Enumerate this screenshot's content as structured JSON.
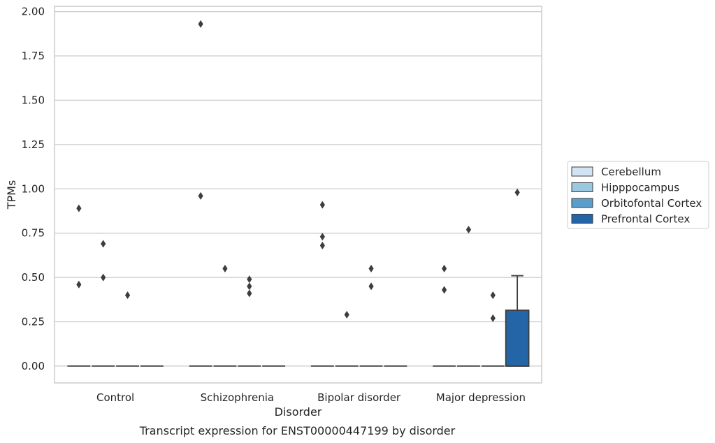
{
  "chart_data": {
    "type": "box",
    "title": "Transcript expression for ENST00000447199 by disorder",
    "xlabel": "Disorder",
    "ylabel": "TPMs",
    "categories": [
      "Control",
      "Schizophrenia",
      "Bipolar disorder",
      "Major depression"
    ],
    "ylim": [
      -0.095,
      2.03
    ],
    "yticks": [
      0.0,
      0.25,
      0.5,
      0.75,
      1.0,
      1.25,
      1.5,
      1.75,
      2.0
    ],
    "ytick_labels": [
      "0.00",
      "0.25",
      "0.50",
      "0.75",
      "1.00",
      "1.25",
      "1.50",
      "1.75",
      "2.00"
    ],
    "grid": true,
    "legend_position": "right",
    "series": [
      {
        "name": "Cerebellum",
        "color": "#d2e3f3",
        "boxes": [
          {
            "q1": 0,
            "median": 0,
            "q3": 0,
            "whisker_low": 0,
            "whisker_high": 0,
            "outliers": [
              0.89,
              0.46
            ]
          },
          {
            "q1": 0,
            "median": 0,
            "q3": 0,
            "whisker_low": 0,
            "whisker_high": 0,
            "outliers": [
              1.93,
              0.96
            ]
          },
          {
            "q1": 0,
            "median": 0,
            "q3": 0,
            "whisker_low": 0,
            "whisker_high": 0,
            "outliers": [
              0.91,
              0.73,
              0.68
            ]
          },
          {
            "q1": 0,
            "median": 0,
            "q3": 0,
            "whisker_low": 0,
            "whisker_high": 0,
            "outliers": [
              0.55,
              0.43
            ]
          }
        ]
      },
      {
        "name": "Hipppocampus",
        "color": "#9ac8e0",
        "boxes": [
          {
            "q1": 0,
            "median": 0,
            "q3": 0,
            "whisker_low": 0,
            "whisker_high": 0,
            "outliers": [
              0.69,
              0.5
            ]
          },
          {
            "q1": 0,
            "median": 0,
            "q3": 0,
            "whisker_low": 0,
            "whisker_high": 0,
            "outliers": [
              0.55
            ]
          },
          {
            "q1": 0,
            "median": 0,
            "q3": 0,
            "whisker_low": 0,
            "whisker_high": 0,
            "outliers": [
              0.29
            ]
          },
          {
            "q1": 0,
            "median": 0,
            "q3": 0,
            "whisker_low": 0,
            "whisker_high": 0,
            "outliers": [
              0.77
            ]
          }
        ]
      },
      {
        "name": "Orbitofontal Cortex",
        "color": "#5a9ec9",
        "boxes": [
          {
            "q1": 0,
            "median": 0,
            "q3": 0,
            "whisker_low": 0,
            "whisker_high": 0,
            "outliers": [
              0.4
            ]
          },
          {
            "q1": 0,
            "median": 0,
            "q3": 0,
            "whisker_low": 0,
            "whisker_high": 0,
            "outliers": [
              0.49,
              0.45,
              0.41
            ]
          },
          {
            "q1": 0,
            "median": 0,
            "q3": 0,
            "whisker_low": 0,
            "whisker_high": 0,
            "outliers": [
              0.55,
              0.45
            ]
          },
          {
            "q1": 0,
            "median": 0,
            "q3": 0,
            "whisker_low": 0,
            "whisker_high": 0,
            "outliers": [
              0.4,
              0.27
            ]
          }
        ]
      },
      {
        "name": "Prefrontal Cortex",
        "color": "#2465a8",
        "boxes": [
          {
            "q1": 0,
            "median": 0,
            "q3": 0,
            "whisker_low": 0,
            "whisker_high": 0,
            "outliers": []
          },
          {
            "q1": 0,
            "median": 0,
            "q3": 0,
            "whisker_low": 0,
            "whisker_high": 0,
            "outliers": []
          },
          {
            "q1": 0,
            "median": 0,
            "q3": 0,
            "whisker_low": 0,
            "whisker_high": 0,
            "outliers": []
          },
          {
            "q1": 0,
            "median": 0,
            "q3": 0.315,
            "whisker_low": 0,
            "whisker_high": 0.51,
            "outliers": [
              0.98
            ]
          }
        ]
      }
    ]
  }
}
